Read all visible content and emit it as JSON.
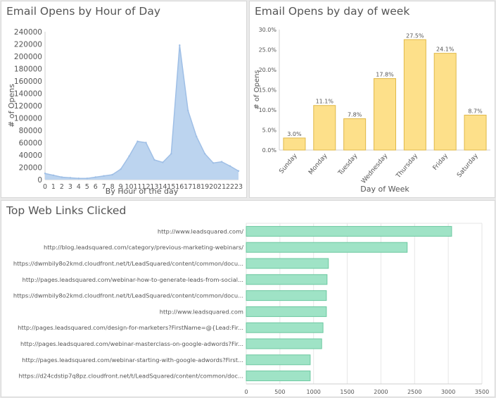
{
  "panels": {
    "hour_title": "Email Opens by Hour of Day",
    "dow_title": "Email Opens by day of week",
    "links_title": "Top Web Links Clicked"
  },
  "colors": {
    "area_fill": "#bcd4ef",
    "area_line": "#9fbfe6",
    "bar_fill": "#fde08a",
    "bar_stroke": "#e0b94a",
    "hbar_fill": "#9fe3c6",
    "hbar_stroke": "#6cc8a0",
    "grid": "#e6e6e6",
    "text": "#555555"
  },
  "chart_data": [
    {
      "type": "area",
      "xlabel": "By Hour of the day",
      "ylabel": "# of Opens",
      "ylim": [
        0,
        240000
      ],
      "yticks": [
        "0",
        "20000",
        "40000",
        "60000",
        "80000",
        "100000",
        "120000",
        "140000",
        "160000",
        "180000",
        "200000",
        "220000",
        "240000"
      ],
      "x": [
        "0",
        "1",
        "2",
        "3",
        "4",
        "5",
        "6",
        "7",
        "8",
        "9",
        "10",
        "11",
        "12",
        "13",
        "14",
        "15",
        "16",
        "17",
        "18",
        "19",
        "20",
        "21",
        "22",
        "23"
      ],
      "values": [
        10000,
        7000,
        4000,
        3000,
        2000,
        2000,
        4000,
        6000,
        8000,
        17000,
        38000,
        62000,
        60000,
        32000,
        28000,
        42000,
        218000,
        112000,
        70000,
        42000,
        27000,
        29000,
        22000,
        14000
      ],
      "grid": false
    },
    {
      "type": "bar",
      "xlabel": "Day of Week",
      "ylabel": "# of Opens",
      "ylim": [
        0,
        30
      ],
      "yticks": [
        "0.0%",
        "5.0%",
        "10.0%",
        "15.0%",
        "20.0%",
        "25.0%",
        "30.0%"
      ],
      "categories": [
        "Sunday",
        "Monday",
        "Tuesday",
        "Wednesday",
        "Thursday",
        "Friday",
        "Saturday"
      ],
      "values": [
        3.0,
        11.1,
        7.8,
        17.8,
        27.5,
        24.1,
        8.7
      ],
      "data_labels": [
        "3.0%",
        "11.1%",
        "7.8%",
        "17.8%",
        "27.5%",
        "24.1%",
        "8.7%"
      ],
      "grid": false
    },
    {
      "type": "bar",
      "orientation": "horizontal",
      "xlim": [
        0,
        3500
      ],
      "xticks": [
        "0",
        "500",
        "1000",
        "1500",
        "2000",
        "2500",
        "3000",
        "3500"
      ],
      "categories": [
        "http://www.leadsquared.com/",
        "http://blog.leadsquared.com/category/previous-marketing-webinars/",
        "https://dwmbily8o2kmd.cloudfront.net/t/LeadSquared/content/common/docu...",
        "http://pages.leadsquared.com/webinar-how-to-generate-leads-from-social...",
        "https://dwmbily8o2kmd.cloudfront.net/t/LeadSquared/content/common/docu...",
        "http://www.leadsquared.com",
        "http://pages.leadsquared.com/design-for-marketers?FirstName=@{Lead:Fir...",
        "http://pages.leadsquared.com/webinar-masterclass-on-google-adwords?Fir...",
        "http://pages.leadsquared.com/webinar-starting-with-google-adwords?First...",
        "https://d24cdstip7q8pz.cloudfront.net/t/LeadSquared/content/common/doc..."
      ],
      "values": [
        3050,
        2390,
        1220,
        1200,
        1190,
        1190,
        1140,
        1120,
        950,
        950
      ],
      "grid": true
    }
  ]
}
